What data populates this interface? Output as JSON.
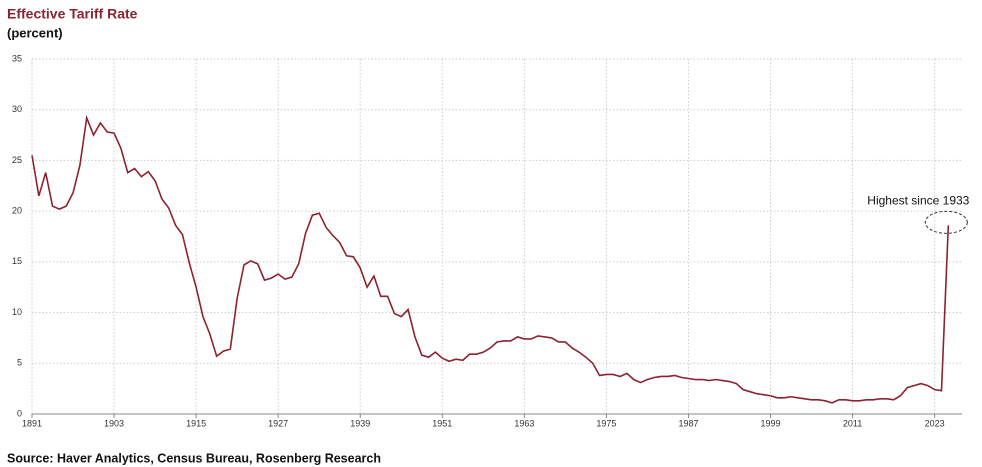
{
  "chart_data": {
    "type": "line",
    "title": "Effective Tariff Rate",
    "subtitle": "(percent)",
    "source": "Source: Haver Analytics, Census Bureau, Rosenberg Research",
    "annotation": "Highest since 1933",
    "color": "#8b2332",
    "grid": true,
    "x": [
      1891,
      1892,
      1893,
      1894,
      1895,
      1896,
      1897,
      1898,
      1899,
      1900,
      1901,
      1902,
      1903,
      1904,
      1905,
      1906,
      1907,
      1908,
      1909,
      1910,
      1911,
      1912,
      1913,
      1914,
      1915,
      1916,
      1917,
      1918,
      1919,
      1920,
      1921,
      1922,
      1923,
      1924,
      1925,
      1926,
      1927,
      1928,
      1929,
      1930,
      1931,
      1932,
      1933,
      1934,
      1935,
      1936,
      1937,
      1938,
      1939,
      1940,
      1941,
      1942,
      1943,
      1944,
      1945,
      1946,
      1947,
      1948,
      1949,
      1950,
      1951,
      1952,
      1953,
      1954,
      1955,
      1956,
      1957,
      1958,
      1959,
      1960,
      1961,
      1962,
      1963,
      1964,
      1965,
      1966,
      1967,
      1968,
      1969,
      1970,
      1971,
      1972,
      1973,
      1974,
      1975,
      1976,
      1977,
      1978,
      1979,
      1980,
      1981,
      1982,
      1983,
      1984,
      1985,
      1986,
      1987,
      1988,
      1989,
      1990,
      1991,
      1992,
      1993,
      1994,
      1995,
      1996,
      1997,
      1998,
      1999,
      2000,
      2001,
      2002,
      2003,
      2004,
      2005,
      2006,
      2007,
      2008,
      2009,
      2010,
      2011,
      2012,
      2013,
      2014,
      2015,
      2016,
      2017,
      2018,
      2019,
      2020,
      2021,
      2022,
      2023,
      2024,
      2025
    ],
    "values": [
      25.5,
      21.5,
      23.8,
      20.5,
      20.2,
      20.5,
      21.8,
      24.5,
      29.2,
      27.5,
      28.7,
      27.8,
      27.7,
      26.2,
      23.8,
      24.2,
      23.4,
      23.9,
      23.0,
      21.2,
      20.3,
      18.6,
      17.7,
      14.9,
      12.5,
      9.6,
      7.9,
      5.7,
      6.2,
      6.4,
      11.4,
      14.7,
      15.1,
      14.8,
      13.2,
      13.4,
      13.8,
      13.3,
      13.5,
      14.8,
      17.8,
      19.6,
      19.8,
      18.4,
      17.6,
      16.9,
      15.6,
      15.5,
      14.4,
      12.5,
      13.6,
      11.6,
      11.6,
      9.9,
      9.6,
      10.3,
      7.6,
      5.8,
      5.6,
      6.1,
      5.5,
      5.2,
      5.4,
      5.3,
      5.9,
      5.9,
      6.1,
      6.5,
      7.1,
      7.2,
      7.2,
      7.6,
      7.4,
      7.4,
      7.7,
      7.6,
      7.5,
      7.1,
      7.1,
      6.5,
      6.1,
      5.6,
      5.0,
      3.8,
      3.9,
      3.9,
      3.7,
      4.0,
      3.4,
      3.1,
      3.4,
      3.6,
      3.7,
      3.7,
      3.8,
      3.6,
      3.5,
      3.4,
      3.4,
      3.3,
      3.4,
      3.3,
      3.2,
      3.0,
      2.4,
      2.2,
      2.0,
      1.9,
      1.8,
      1.6,
      1.6,
      1.7,
      1.6,
      1.5,
      1.4,
      1.4,
      1.3,
      1.1,
      1.4,
      1.4,
      1.3,
      1.3,
      1.4,
      1.4,
      1.5,
      1.5,
      1.4,
      1.8,
      2.6,
      2.8,
      3.0,
      2.8,
      2.4,
      2.3,
      18.6
    ],
    "xlim": [
      1891,
      2027
    ],
    "xticks": [
      1891,
      1903,
      1915,
      1927,
      1939,
      1951,
      1963,
      1975,
      1987,
      1999,
      2011,
      2023
    ],
    "ylim": [
      0,
      35
    ],
    "yticks": [
      0,
      5,
      10,
      15,
      20,
      25,
      30,
      35
    ]
  }
}
